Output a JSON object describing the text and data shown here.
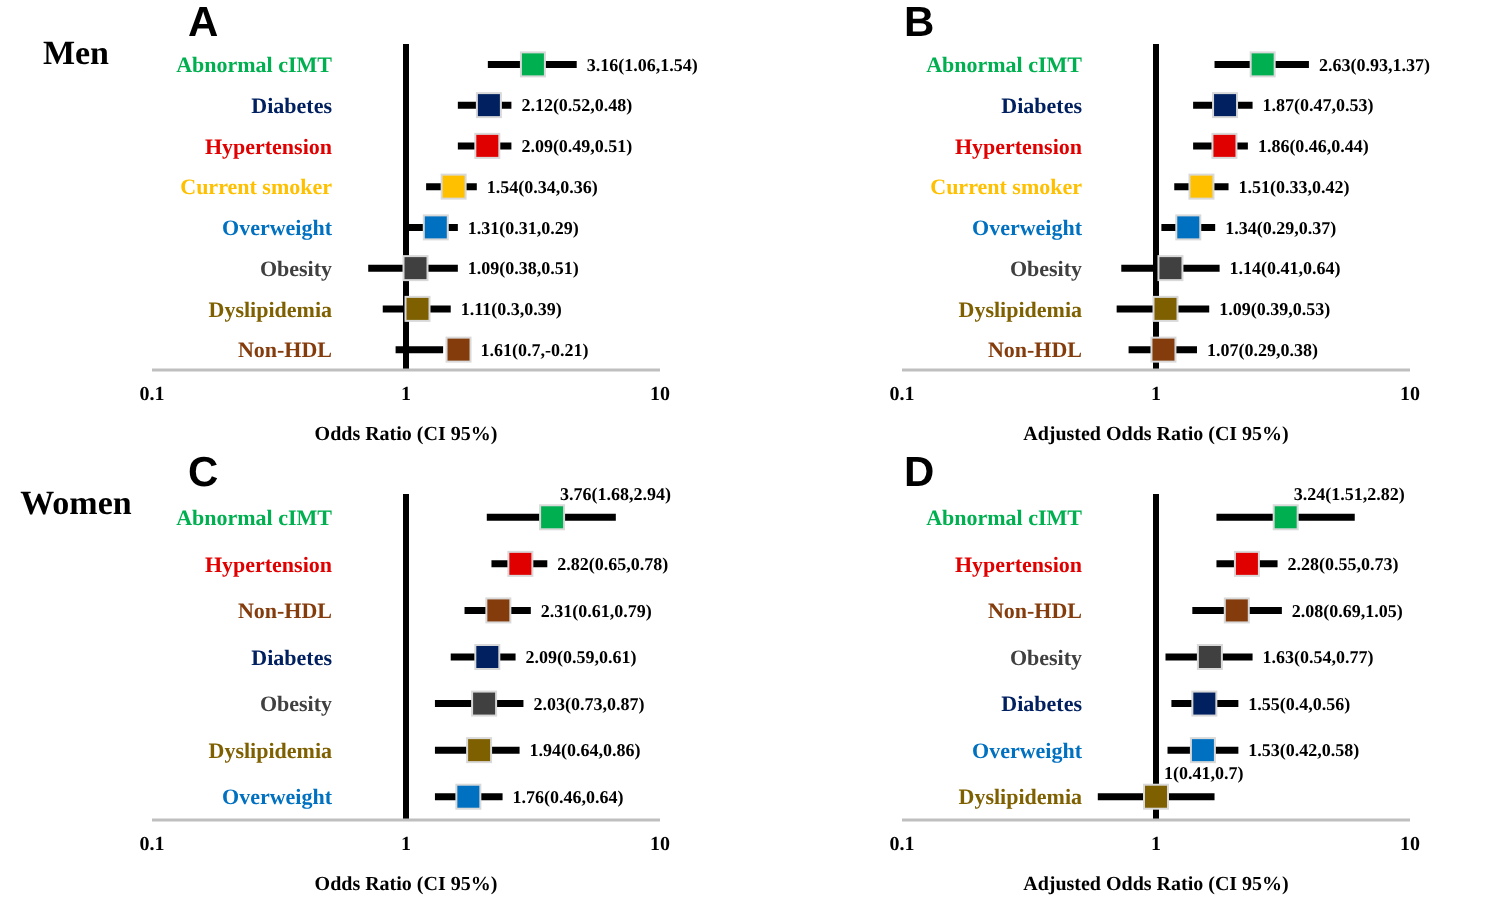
{
  "chart_data": [
    {
      "type": "scatter",
      "orientation": "horizontal",
      "title": "A",
      "annotations": [
        "Men"
      ],
      "xlabel": "Odds Ratio (CI 95%)",
      "log": "x",
      "xlim": [
        0.1,
        10
      ],
      "xticks": [
        0.1,
        1,
        10
      ],
      "marker": "square",
      "ref_lines": [
        {
          "axis": "x",
          "value": 1,
          "color": "#000000"
        }
      ],
      "categories": [
        "Abnormal cIMT",
        "Diabetes",
        "Hypertension",
        "Current smoker",
        "Overweight",
        "Obesity",
        "Dyslipidemia",
        "Non-HDL"
      ],
      "values": [
        3.16,
        2.12,
        2.09,
        1.54,
        1.31,
        1.09,
        1.11,
        1.61
      ],
      "errors": [
        [
          2.1,
          4.7
        ],
        [
          1.6,
          2.6
        ],
        [
          1.6,
          2.6
        ],
        [
          1.2,
          1.9
        ],
        [
          1.0,
          1.6
        ],
        [
          0.71,
          1.6
        ],
        [
          0.81,
          1.5
        ],
        [
          0.91,
          1.4
        ]
      ],
      "value_labels": [
        "3.16(1.06,1.54)",
        "2.12(0.52,0.48)",
        "2.09(0.49,0.51)",
        "1.54(0.34,0.36)",
        "1.31(0.31,0.29)",
        "1.09(0.38,0.51)",
        "1.11(0.3,0.39)",
        "1.61(0.7,-0.21)"
      ],
      "colors": [
        "#00b050",
        "#002060",
        "#e00000",
        "#ffc000",
        "#0070c0",
        "#404040",
        "#7f6000",
        "#843c0c"
      ]
    },
    {
      "type": "scatter",
      "orientation": "horizontal",
      "title": "B",
      "xlabel": "Adjusted Odds Ratio (CI 95%)",
      "log": "x",
      "xlim": [
        0.1,
        10
      ],
      "xticks": [
        0.1,
        1,
        10
      ],
      "marker": "square",
      "ref_lines": [
        {
          "axis": "x",
          "value": 1,
          "color": "#000000"
        }
      ],
      "categories": [
        "Abnormal cIMT",
        "Diabetes",
        "Hypertension",
        "Current smoker",
        "Overweight",
        "Obesity",
        "Dyslipidemia",
        "Non-HDL"
      ],
      "values": [
        2.63,
        1.87,
        1.86,
        1.51,
        1.34,
        1.14,
        1.09,
        1.07
      ],
      "errors": [
        [
          1.7,
          4.0
        ],
        [
          1.4,
          2.4
        ],
        [
          1.4,
          2.3
        ],
        [
          1.18,
          1.93
        ],
        [
          1.05,
          1.71
        ],
        [
          0.73,
          1.78
        ],
        [
          0.7,
          1.62
        ],
        [
          0.78,
          1.45
        ]
      ],
      "value_labels": [
        "2.63(0.93,1.37)",
        "1.87(0.47,0.53)",
        "1.86(0.46,0.44)",
        "1.51(0.33,0.42)",
        "1.34(0.29,0.37)",
        "1.14(0.41,0.64)",
        "1.09(0.39,0.53)",
        "1.07(0.29,0.38)"
      ],
      "colors": [
        "#00b050",
        "#002060",
        "#e00000",
        "#ffc000",
        "#0070c0",
        "#404040",
        "#7f6000",
        "#843c0c"
      ]
    },
    {
      "type": "scatter",
      "orientation": "horizontal",
      "title": "C",
      "annotations": [
        "Women"
      ],
      "xlabel": "Odds Ratio (CI 95%)",
      "log": "x",
      "xlim": [
        0.1,
        10
      ],
      "xticks": [
        0.1,
        1,
        10
      ],
      "marker": "square",
      "ref_lines": [
        {
          "axis": "x",
          "value": 1,
          "color": "#000000"
        }
      ],
      "categories": [
        "Abnormal cIMT",
        "Hypertension",
        "Non-HDL",
        "Diabetes",
        "Obesity",
        "Dyslipidemia",
        "Overweight"
      ],
      "values": [
        3.76,
        2.82,
        2.31,
        2.09,
        2.03,
        1.94,
        1.76
      ],
      "errors": [
        [
          2.08,
          6.7
        ],
        [
          2.17,
          3.6
        ],
        [
          1.7,
          3.1
        ],
        [
          1.5,
          2.7
        ],
        [
          1.3,
          2.9
        ],
        [
          1.3,
          2.8
        ],
        [
          1.3,
          2.4
        ]
      ],
      "value_labels": [
        "3.76(1.68,2.94)",
        "2.82(0.65,0.78)",
        "2.31(0.61,0.79)",
        "2.09(0.59,0.61)",
        "2.03(0.73,0.87)",
        "1.94(0.64,0.86)",
        "1.76(0.46,0.64)"
      ],
      "colors": [
        "#00b050",
        "#e00000",
        "#843c0c",
        "#002060",
        "#404040",
        "#7f6000",
        "#0070c0"
      ]
    },
    {
      "type": "scatter",
      "orientation": "horizontal",
      "title": "D",
      "xlabel": "Adjusted Odds Ratio (CI 95%)",
      "log": "x",
      "xlim": [
        0.1,
        10
      ],
      "xticks": [
        0.1,
        1,
        10
      ],
      "marker": "square",
      "ref_lines": [
        {
          "axis": "x",
          "value": 1,
          "color": "#000000"
        }
      ],
      "categories": [
        "Abnormal cIMT",
        "Hypertension",
        "Non-HDL",
        "Obesity",
        "Diabetes",
        "Overweight",
        "Dyslipidemia"
      ],
      "values": [
        3.24,
        2.28,
        2.08,
        1.63,
        1.55,
        1.53,
        1
      ],
      "errors": [
        [
          1.73,
          6.06
        ],
        [
          1.73,
          3.01
        ],
        [
          1.39,
          3.13
        ],
        [
          1.09,
          2.4
        ],
        [
          1.15,
          2.11
        ],
        [
          1.11,
          2.11
        ],
        [
          0.59,
          1.7
        ]
      ],
      "value_labels": [
        "3.24(1.51,2.82)",
        "2.28(0.55,0.73)",
        "2.08(0.69,1.05)",
        "1.63(0.54,0.77)",
        "1.55(0.4,0.56)",
        "1.53(0.42,0.58)",
        "1(0.41,0.7)"
      ],
      "colors": [
        "#00b050",
        "#e00000",
        "#843c0c",
        "#404040",
        "#002060",
        "#0070c0",
        "#7f6000"
      ]
    }
  ]
}
